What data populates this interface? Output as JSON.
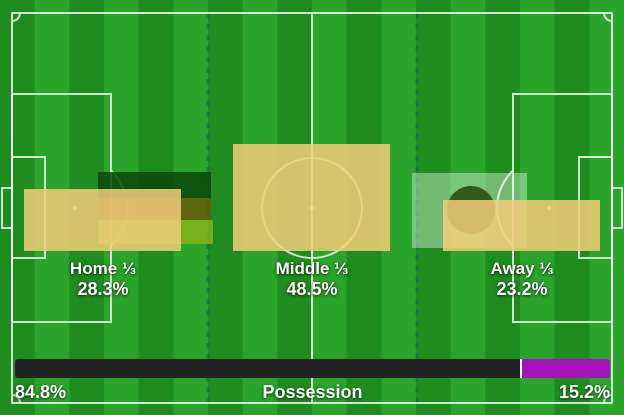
{
  "zones": [
    {
      "label": "Home ⅓",
      "value": "28.3%"
    },
    {
      "label": "Middle ⅓",
      "value": "48.5%"
    },
    {
      "label": "Away ⅓",
      "value": "23.2%"
    }
  ],
  "possession_bar": {
    "home": "84.8%",
    "label": "Possession",
    "away": "15.2%"
  },
  "colors": {
    "grass_dark": "#1f8c1f",
    "grass_light": "#2aa42a",
    "pitch_line": "#eef6ee",
    "zone_fill": "#f3cd7a",
    "possession_home": "#242424",
    "possession_away": "#a713bb",
    "third_boundary_dash": "#0d5f6e",
    "heat_dark_green": "#0a460a",
    "heat_olive": "#695808",
    "heat_chartreuse": "#8ab41c",
    "away_overlay_light": "#f0fff0",
    "away_overlay_spot": "#28460a"
  },
  "chart_data": {
    "type": "bar",
    "categories": [
      "Home ⅓",
      "Middle ⅓",
      "Away ⅓"
    ],
    "values": [
      28.3,
      48.5,
      23.2
    ],
    "value_unit": "%",
    "possession": {
      "label": "Possession",
      "home": 84.8,
      "away": 15.2
    },
    "legend_position": "none",
    "grid": false
  }
}
